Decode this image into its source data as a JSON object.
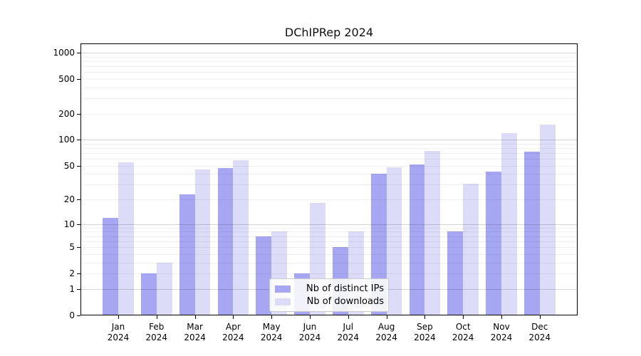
{
  "chart_data": {
    "type": "bar",
    "title": "DChIPRep 2024",
    "categories": [
      "Jan",
      "Feb",
      "Mar",
      "Apr",
      "May",
      "Jun",
      "Jul",
      "Aug",
      "Sep",
      "Oct",
      "Nov",
      "Dec"
    ],
    "category_year": "2024",
    "series": [
      {
        "name": "Nb of distinct IPs",
        "color": "#a6a6f2",
        "values": [
          12,
          2,
          23,
          47,
          7,
          2,
          5,
          40,
          52,
          8,
          43,
          73
        ]
      },
      {
        "name": "Nb of downloads",
        "color": "#dcdcf8",
        "values": [
          55,
          3,
          45,
          58,
          8,
          18,
          8,
          48,
          75,
          31,
          120,
          150
        ]
      }
    ],
    "y_axis": {
      "scale": "log1p",
      "ticks": [
        0,
        1,
        2,
        5,
        10,
        20,
        50,
        100,
        200,
        500,
        1000
      ],
      "range_top": 1250
    },
    "x_axis": {
      "tick_label_lines": 2
    },
    "grid": {
      "major_values": [
        1,
        10,
        100,
        1000
      ],
      "minor_mantissas": [
        2,
        3,
        4,
        5,
        6,
        7,
        8,
        9
      ]
    },
    "legend_position": "lower-center"
  },
  "colors": {
    "background": "#ffffff",
    "spine": "#000000",
    "grid_major": "rgba(0,0,0,0.16)",
    "grid_minor": "rgba(0,0,0,0.055)",
    "legend_border": "#cbcbcb"
  }
}
